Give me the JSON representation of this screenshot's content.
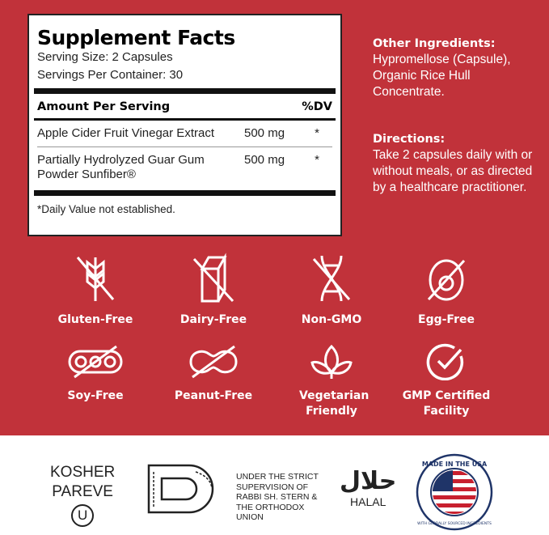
{
  "supplement_facts": {
    "title": "Supplement Facts",
    "serving_size": "Serving Size: 2 Capsules",
    "servings_per_container": "Servings Per Container: 30",
    "header_amount": "Amount Per Serving",
    "header_dv": "%DV",
    "rows": [
      {
        "name": "Apple Cider Fruit Vinegar Extract",
        "amount": "500 mg",
        "dv": "*"
      },
      {
        "name": "Partially Hydrolyzed Guar Gum Powder Sunfiber®",
        "amount": "500 mg",
        "dv": "*"
      }
    ],
    "footnote": "*Daily Value not established."
  },
  "other_ingredients": {
    "title": "Other Ingredients:",
    "text": "Hypromellose (Capsule), Organic Rice Hull Concentrate."
  },
  "directions": {
    "title": "Directions:",
    "text": "Take 2 capsules daily with or without meals, or as directed by a healthcare practitioner."
  },
  "badges": [
    {
      "label": "Gluten-Free",
      "icon": "wheat-crossed-icon"
    },
    {
      "label": "Dairy-Free",
      "icon": "milk-carton-crossed-icon"
    },
    {
      "label": "Non-GMO",
      "icon": "dna-crossed-icon"
    },
    {
      "label": "Egg-Free",
      "icon": "egg-crossed-icon"
    },
    {
      "label": "Soy-Free",
      "icon": "soybean-crossed-icon"
    },
    {
      "label": "Peanut-Free",
      "icon": "peanut-crossed-icon"
    },
    {
      "label": "Vegetarian Friendly",
      "icon": "leaf-icon"
    },
    {
      "label": "GMP Certified Facility",
      "icon": "check-circle-icon"
    }
  ],
  "certifications": {
    "kosher_line1": "KOSHER",
    "kosher_line2": "PAREVE",
    "ou_symbol": "U",
    "supervision": "UNDER THE STRICT SUPERVISION OF RABBI SH. STERN & THE ORTHODOX UNION",
    "halal_arabic": "حلال",
    "halal": "HALAL",
    "usa_seal": "MADE IN THE USA",
    "usa_seal_sub": "WITH GLOBALLY SOURCED INGREDIENTS"
  },
  "colors": {
    "brand_red": "#c1323a"
  }
}
